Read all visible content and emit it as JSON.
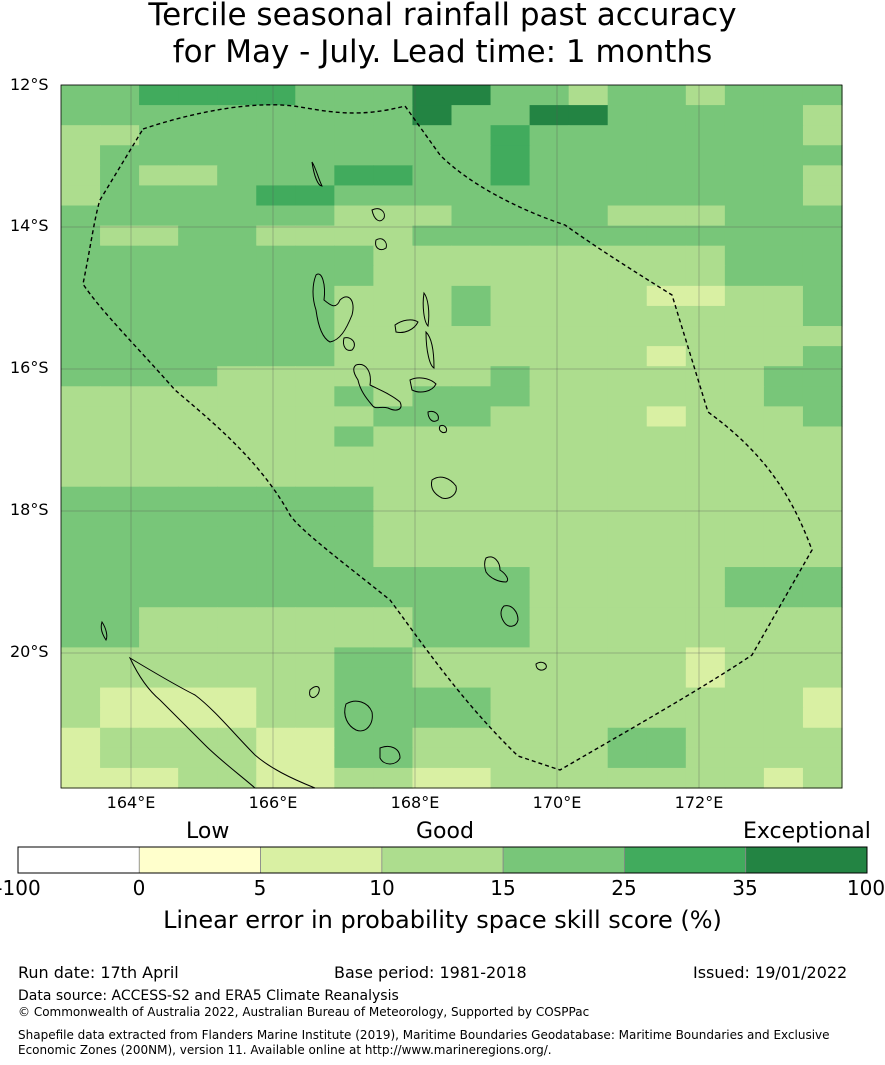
{
  "title": {
    "line1": "Tercile seasonal rainfall past accuracy",
    "line2": "for May - July. Lead time: 1 months"
  },
  "map": {
    "lat_labels": [
      "12°S",
      "14°S",
      "16°S",
      "18°S",
      "20°S"
    ],
    "lon_labels": [
      "164°E",
      "166°E",
      "168°E",
      "170°E",
      "172°E"
    ],
    "category_labels": {
      "low": "Low",
      "good": "Good",
      "exceptional": "Exceptional"
    },
    "palette": [
      "#ffffff",
      "#ffffcc",
      "#d9f0a3",
      "#addd8e",
      "#78c679",
      "#41ab5d",
      "#238443"
    ],
    "skill_grid": [
      [
        4,
        4,
        5,
        5,
        5,
        5,
        4,
        4,
        4,
        6,
        6,
        4,
        4,
        3,
        4,
        4,
        3,
        4,
        4,
        4
      ],
      [
        4,
        4,
        4,
        4,
        4,
        4,
        4,
        4,
        4,
        6,
        4,
        4,
        6,
        6,
        4,
        4,
        4,
        4,
        4,
        3
      ],
      [
        3,
        3,
        4,
        4,
        4,
        4,
        4,
        4,
        4,
        4,
        4,
        5,
        4,
        4,
        4,
        4,
        4,
        4,
        4,
        3
      ],
      [
        3,
        4,
        4,
        4,
        4,
        4,
        4,
        4,
        4,
        4,
        4,
        5,
        4,
        4,
        4,
        4,
        4,
        4,
        4,
        4
      ],
      [
        3,
        4,
        3,
        3,
        4,
        4,
        4,
        5,
        5,
        4,
        4,
        5,
        4,
        4,
        4,
        4,
        4,
        4,
        4,
        3
      ],
      [
        3,
        4,
        4,
        4,
        4,
        5,
        5,
        4,
        4,
        4,
        4,
        4,
        4,
        4,
        4,
        4,
        4,
        4,
        4,
        3
      ],
      [
        4,
        4,
        4,
        4,
        4,
        4,
        4,
        3,
        3,
        3,
        4,
        4,
        4,
        4,
        3,
        3,
        3,
        4,
        4,
        4
      ],
      [
        4,
        3,
        3,
        4,
        4,
        3,
        3,
        3,
        3,
        4,
        4,
        4,
        4,
        4,
        4,
        4,
        4,
        4,
        4,
        4
      ],
      [
        4,
        4,
        4,
        4,
        4,
        4,
        4,
        4,
        3,
        3,
        3,
        3,
        3,
        3,
        3,
        3,
        3,
        4,
        4,
        4
      ],
      [
        4,
        4,
        4,
        4,
        4,
        4,
        4,
        4,
        3,
        3,
        3,
        3,
        3,
        3,
        3,
        3,
        3,
        4,
        4,
        4
      ],
      [
        4,
        4,
        4,
        4,
        4,
        4,
        4,
        3,
        3,
        3,
        4,
        3,
        3,
        3,
        3,
        2,
        2,
        3,
        3,
        4
      ],
      [
        4,
        4,
        4,
        4,
        4,
        4,
        4,
        3,
        3,
        3,
        4,
        3,
        3,
        3,
        3,
        3,
        3,
        3,
        3,
        4
      ],
      [
        4,
        4,
        4,
        4,
        4,
        4,
        4,
        3,
        3,
        3,
        3,
        3,
        3,
        3,
        3,
        3,
        3,
        3,
        3,
        3
      ],
      [
        4,
        4,
        4,
        4,
        4,
        4,
        4,
        3,
        3,
        3,
        3,
        3,
        3,
        3,
        3,
        2,
        3,
        3,
        3,
        4
      ],
      [
        4,
        4,
        4,
        4,
        3,
        3,
        3,
        3,
        3,
        3,
        3,
        4,
        3,
        3,
        3,
        3,
        3,
        3,
        4,
        4
      ],
      [
        3,
        3,
        3,
        3,
        3,
        3,
        3,
        4,
        3,
        4,
        4,
        4,
        3,
        3,
        3,
        3,
        3,
        3,
        4,
        4
      ],
      [
        3,
        3,
        3,
        3,
        3,
        3,
        3,
        3,
        4,
        4,
        4,
        3,
        3,
        3,
        3,
        2,
        3,
        3,
        3,
        4
      ],
      [
        3,
        3,
        3,
        3,
        3,
        3,
        3,
        4,
        3,
        3,
        3,
        3,
        3,
        3,
        3,
        3,
        3,
        3,
        3,
        3
      ],
      [
        3,
        3,
        3,
        3,
        3,
        3,
        3,
        3,
        3,
        3,
        3,
        3,
        3,
        3,
        3,
        3,
        3,
        3,
        3,
        3
      ],
      [
        3,
        3,
        3,
        3,
        3,
        3,
        3,
        3,
        3,
        3,
        3,
        3,
        3,
        3,
        3,
        3,
        3,
        3,
        3,
        3
      ],
      [
        4,
        4,
        4,
        4,
        4,
        4,
        4,
        4,
        3,
        3,
        3,
        3,
        3,
        3,
        3,
        3,
        3,
        3,
        3,
        3
      ],
      [
        4,
        4,
        4,
        4,
        4,
        4,
        4,
        4,
        3,
        3,
        3,
        3,
        3,
        3,
        3,
        3,
        3,
        3,
        3,
        3
      ],
      [
        4,
        4,
        4,
        4,
        4,
        4,
        4,
        4,
        3,
        3,
        3,
        3,
        3,
        3,
        3,
        3,
        3,
        3,
        3,
        3
      ],
      [
        4,
        4,
        4,
        4,
        4,
        4,
        4,
        4,
        3,
        3,
        3,
        3,
        3,
        3,
        3,
        3,
        3,
        3,
        3,
        3
      ],
      [
        4,
        4,
        4,
        4,
        4,
        4,
        4,
        4,
        4,
        4,
        4,
        4,
        3,
        3,
        3,
        3,
        3,
        4,
        4,
        4
      ],
      [
        4,
        4,
        4,
        4,
        4,
        4,
        4,
        4,
        4,
        4,
        4,
        4,
        3,
        3,
        3,
        3,
        3,
        4,
        4,
        4
      ],
      [
        4,
        4,
        3,
        3,
        3,
        3,
        3,
        3,
        3,
        4,
        4,
        4,
        3,
        3,
        3,
        3,
        3,
        3,
        3,
        3
      ],
      [
        4,
        4,
        3,
        3,
        3,
        3,
        3,
        3,
        3,
        4,
        4,
        4,
        3,
        3,
        3,
        3,
        3,
        3,
        3,
        3
      ],
      [
        3,
        3,
        3,
        3,
        3,
        3,
        3,
        4,
        4,
        3,
        3,
        3,
        3,
        3,
        3,
        3,
        2,
        3,
        3,
        3
      ],
      [
        3,
        3,
        3,
        3,
        3,
        3,
        3,
        4,
        4,
        3,
        3,
        3,
        3,
        3,
        3,
        3,
        2,
        3,
        3,
        3
      ],
      [
        3,
        2,
        2,
        2,
        2,
        3,
        3,
        4,
        4,
        4,
        4,
        3,
        3,
        3,
        3,
        3,
        3,
        3,
        3,
        2
      ],
      [
        3,
        2,
        2,
        2,
        2,
        3,
        3,
        4,
        4,
        4,
        4,
        3,
        3,
        3,
        3,
        3,
        3,
        3,
        3,
        2
      ],
      [
        2,
        3,
        3,
        3,
        3,
        2,
        2,
        4,
        4,
        3,
        3,
        3,
        3,
        3,
        4,
        4,
        3,
        3,
        3,
        3
      ],
      [
        2,
        3,
        3,
        3,
        3,
        2,
        2,
        4,
        4,
        3,
        3,
        3,
        3,
        3,
        4,
        4,
        3,
        3,
        3,
        3
      ],
      [
        2,
        2,
        2,
        3,
        3,
        2,
        2,
        3,
        3,
        2,
        2,
        3,
        3,
        3,
        3,
        3,
        3,
        3,
        2,
        3
      ]
    ]
  },
  "colorbar": {
    "colors": [
      "#ffffff",
      "#ffffcc",
      "#d9f0a3",
      "#addd8e",
      "#78c679",
      "#41ab5d",
      "#238443"
    ],
    "ticks": [
      "-100",
      "0",
      "5",
      "10",
      "15",
      "25",
      "35",
      "100"
    ],
    "title": "Linear error in probability space skill score (%)"
  },
  "footer": {
    "run_date": "Run date: 17th April",
    "base_period": "Base period: 1981-2018",
    "issued": "Issued: 19/01/2022",
    "data_source": "Data source: ACCESS-S2 and ERA5 Climate Reanalysis",
    "copyright": "© Commonwealth of Australia 2022, Australian Bureau of Meteorology, Supported by COSPPac",
    "shapefile_line1": "Shapefile data extracted from Flanders Marine Institute (2019), Maritime Boundaries Geodatabase: Maritime Boundaries and Exclusive",
    "shapefile_line2": "Economic Zones (200NM), version 11. Available online at http://www.marineregions.org/."
  }
}
